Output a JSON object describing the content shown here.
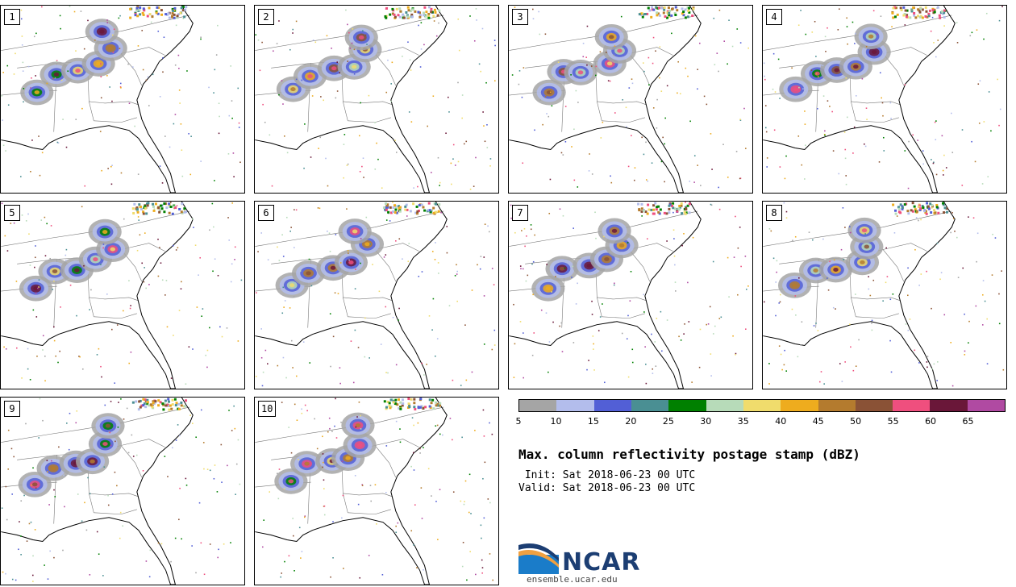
{
  "members": [
    "1",
    "2",
    "3",
    "4",
    "5",
    "6",
    "7",
    "8",
    "9",
    "10"
  ],
  "colorbar": {
    "colors": [
      "#a5a5a5",
      "#b3bdec",
      "#525fd6",
      "#4a8f93",
      "#008000",
      "#b7dbb9",
      "#f0dc6c",
      "#eeac1e",
      "#b47b2e",
      "#8a5236",
      "#ef4f7e",
      "#6a1739",
      "#b04aa2"
    ],
    "ticks": [
      "5",
      "10",
      "15",
      "20",
      "25",
      "30",
      "35",
      "40",
      "45",
      "50",
      "55",
      "60",
      "65"
    ]
  },
  "title": "Max. column reflectivity postage stamp (dBZ)",
  "init_line": " Init: Sat 2018-06-23 00 UTC",
  "valid_line": "Valid: Sat 2018-06-23 00 UTC",
  "logo": {
    "name": "NCAR",
    "url": "ensemble.ucar.edu",
    "colors": {
      "blue": "#1a7cc9",
      "navy": "#1c3e73",
      "orange": "#f0a040"
    }
  }
}
